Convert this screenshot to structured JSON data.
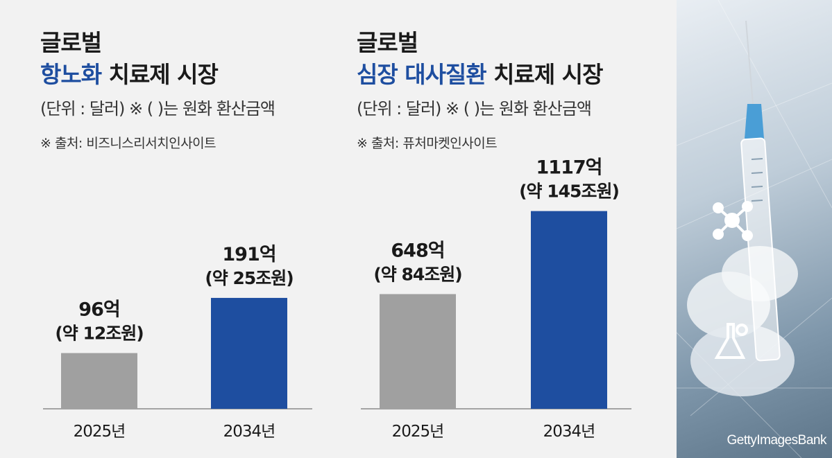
{
  "chart_data": [
    {
      "type": "bar",
      "title_line1": "글로벌",
      "title_accent": "항노화",
      "title_rest": " 치료제 시장",
      "subtitle": "(단위 : 달러) ※ (  )는 원화 환산금액",
      "source": "※ 출처: 비즈니스리서치인사이트",
      "categories": [
        "2025년",
        "2034년"
      ],
      "values": [
        96,
        191
      ],
      "value_labels": [
        "96억",
        "191억"
      ],
      "sub_labels": [
        "(약 12조원)",
        "(약 25조원)"
      ],
      "colors": [
        "#a0a0a0",
        "#1e4ea0"
      ]
    },
    {
      "type": "bar",
      "title_line1": "글로벌",
      "title_accent": "심장 대사질환",
      "title_rest": " 치료제 시장",
      "subtitle": "(단위 : 달러) ※ (  )는 원화 환산금액",
      "source": "※ 출처: 퓨처마켓인사이트",
      "categories": [
        "2025년",
        "2034년"
      ],
      "values": [
        648,
        1117
      ],
      "value_labels": [
        "648억",
        "1117억"
      ],
      "sub_labels": [
        "(약 84조원)",
        "(약 145조원)"
      ],
      "colors": [
        "#a0a0a0",
        "#1e4ea0"
      ]
    }
  ],
  "photo": {
    "credit": "GettyImagesBank",
    "icons": [
      "molecule-icon",
      "flask-icon",
      "syringe-icon"
    ]
  }
}
